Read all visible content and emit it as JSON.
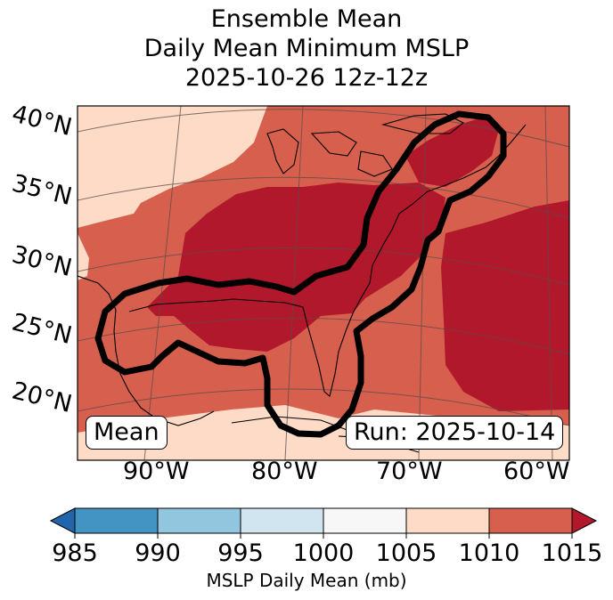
{
  "title": {
    "line1": "Ensemble Mean",
    "line2": "Daily Mean Minimum MSLP",
    "line3": "2025-10-26 12z-12z"
  },
  "latitude_labels": [
    "40°N",
    "35°N",
    "30°N",
    "25°N",
    "20°N"
  ],
  "longitude_labels": [
    "90°W",
    "80°W",
    "70°W",
    "60°W"
  ],
  "mean_box": "Mean",
  "run_box": "Run: 2025-10-14",
  "colorbar": {
    "ticks": [
      "985",
      "990",
      "995",
      "1000",
      "1005",
      "1010",
      "1015"
    ],
    "label": "MSLP Daily Mean (mb)",
    "colors": [
      "#2166ac",
      "#4393c3",
      "#92c5de",
      "#d1e5f0",
      "#f7f7f7",
      "#fddbc7",
      "#d6604d",
      "#b2182b"
    ]
  },
  "map_colors": {
    "level_1005_1010": "#fddbc7",
    "level_1010_1015": "#d6604d",
    "level_above_1015": "#b2182b",
    "outline": "#000000"
  }
}
